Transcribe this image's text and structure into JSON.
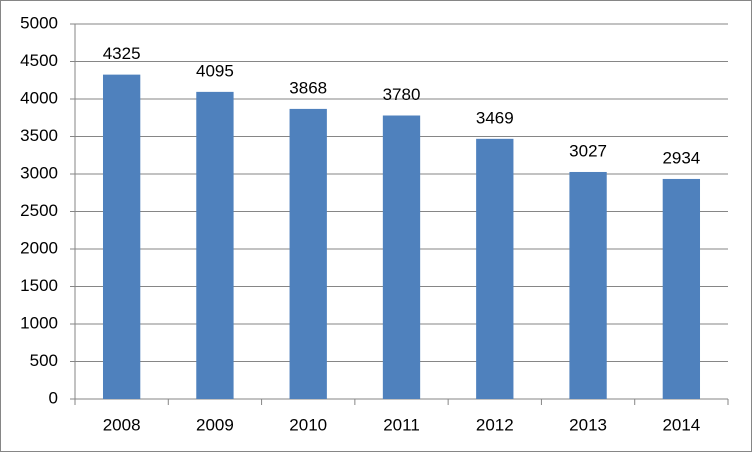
{
  "chart_data": {
    "type": "bar",
    "categories": [
      "2008",
      "2009",
      "2010",
      "2011",
      "2012",
      "2013",
      "2014"
    ],
    "values": [
      4325,
      4095,
      3868,
      3780,
      3469,
      3027,
      2934
    ],
    "color": "#4f81bd",
    "ylim": [
      0,
      5000
    ],
    "yticks": [
      0,
      500,
      1000,
      1500,
      2000,
      2500,
      3000,
      3500,
      4000,
      4500,
      5000
    ],
    "grid": true
  }
}
